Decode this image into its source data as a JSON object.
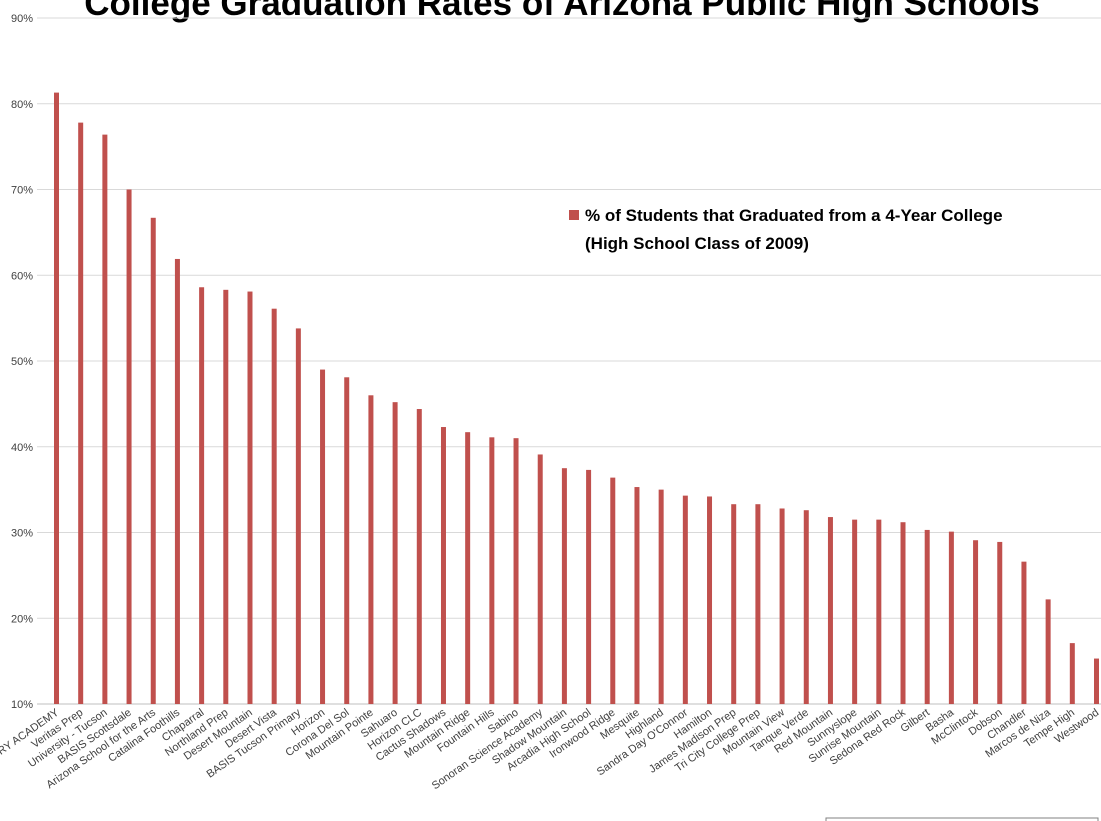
{
  "chart_data": {
    "type": "bar",
    "title": "College Graduation Rates of Arizona Public High Schools",
    "xlabel": "",
    "ylabel": "",
    "ylim": [
      10,
      90
    ],
    "y_ticks": [
      "10%",
      "20%",
      "30%",
      "40%",
      "50%",
      "60%",
      "70%",
      "80%",
      "90%"
    ],
    "grid": true,
    "legend_position": "upper-right",
    "bar_color": "#C0504D",
    "categories": [
      "ORY ACADEMY",
      "Veritas Prep",
      "University - Tucson",
      "BASIS Scottsdale",
      "Arizona School for the Arts",
      "Catalina Foothills",
      "Chaparral",
      "Northland Prep",
      "Desert Mountain",
      "Desert Vista",
      "BASIS Tucson Primary",
      "Horizon",
      "Corona Del Sol",
      "Mountain Pointe",
      "Sahuaro",
      "Horizon CLC",
      "Cactus Shadows",
      "Mountain Ridge",
      "Fountain Hills",
      "Sabino",
      "Sonoran Science Academy",
      "Shadow Mountain",
      "Arcadia High School",
      "Ironwood Ridge",
      "Mesquite",
      "Highland",
      "Sandra Day O'Connor",
      "Hamilton",
      "James Madison Prep",
      "Tri City College Prep",
      "Mountain View",
      "Tanque Verde",
      "Red Mountain",
      "Sunnyslope",
      "Sunrise Mountain",
      "Sedona Red Rock",
      "Gilbert",
      "Basha",
      "McClintock",
      "Dobson",
      "Chandler",
      "Marcos de Niza",
      "Tempe High",
      "Westwood"
    ],
    "series": [
      {
        "name": "% of Students that Graduated from a 4-Year College (High School Class of 2009)",
        "legend_lines": [
          "% of Students that Graduated from a 4-Year College",
          "(High School Class of 2009)"
        ],
        "values": [
          81.3,
          77.8,
          76.4,
          70.0,
          66.7,
          61.9,
          58.6,
          58.3,
          58.1,
          56.1,
          53.8,
          49.0,
          48.1,
          46.0,
          45.2,
          44.4,
          42.3,
          41.7,
          41.1,
          41.0,
          39.1,
          37.5,
          37.3,
          36.4,
          35.3,
          35.0,
          34.3,
          34.2,
          33.3,
          33.3,
          32.8,
          32.6,
          31.8,
          31.5,
          31.5,
          31.2,
          30.3,
          30.1,
          29.1,
          28.9,
          26.6,
          22.2,
          17.1,
          15.3
        ]
      }
    ]
  }
}
